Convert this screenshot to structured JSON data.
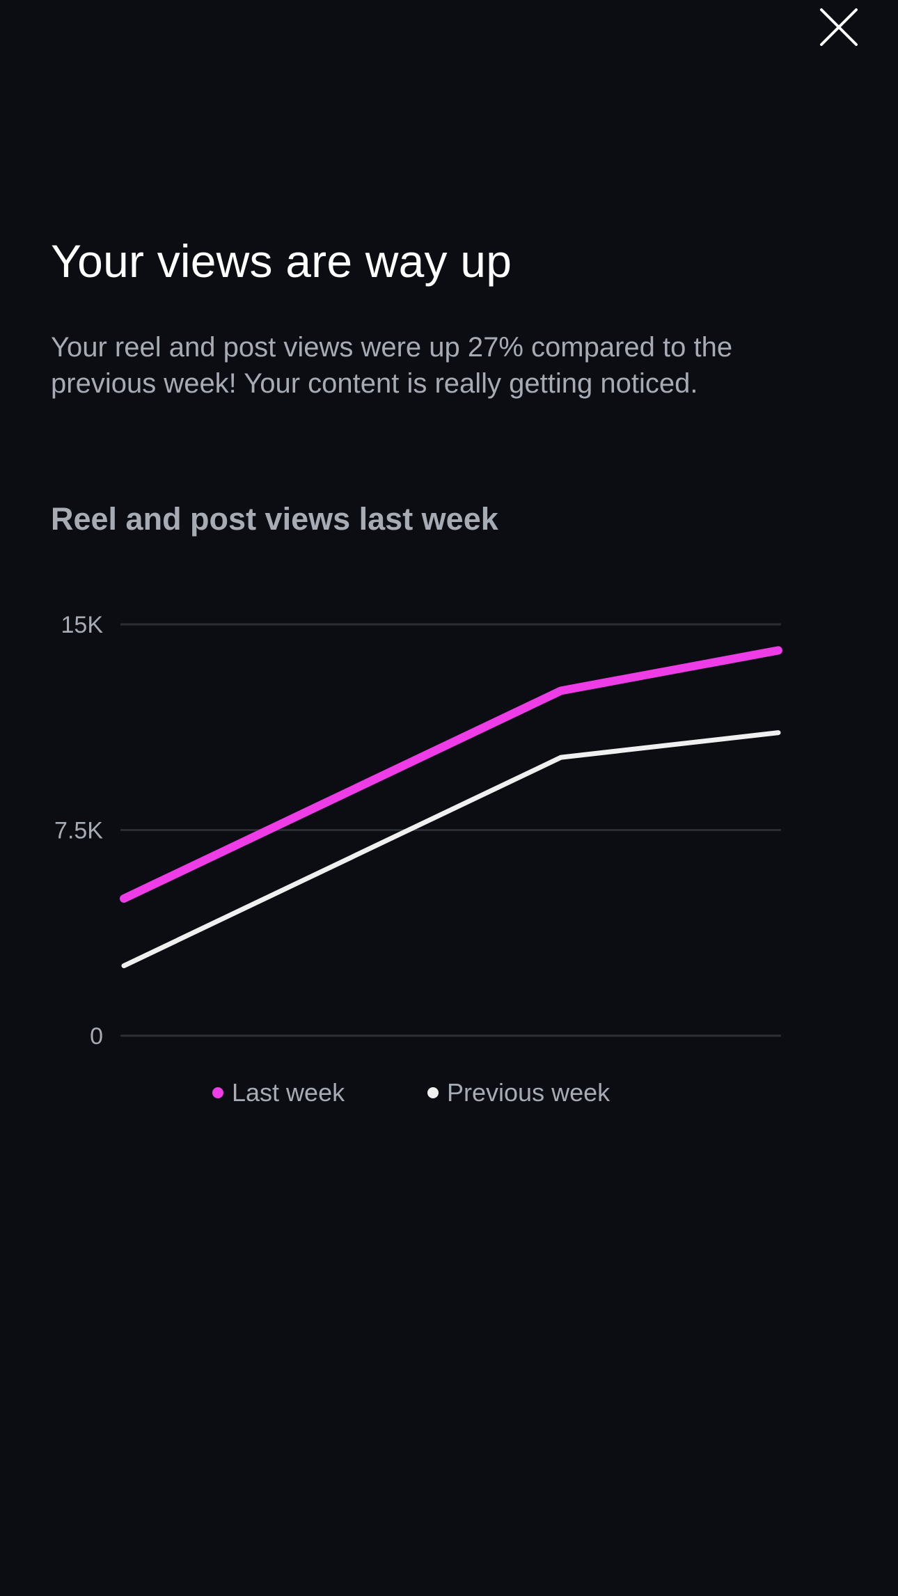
{
  "close_button": {
    "icon": "close-icon"
  },
  "header": {
    "title": "Your views are way up",
    "description": "Your reel and post views were up 27% compared to the previous week! Your content is really getting noticed."
  },
  "chart": {
    "title": "Reel and post views last week"
  },
  "chart_data": {
    "type": "line",
    "title": "Reel and post views last week",
    "xlabel": "",
    "ylabel": "",
    "ylim": [
      0,
      15000
    ],
    "yticks": [
      {
        "value": 0,
        "label": "0"
      },
      {
        "value": 7500,
        "label": "7.5K"
      },
      {
        "value": 15000,
        "label": "15K"
      }
    ],
    "x": [
      0,
      1,
      2
    ],
    "grid": true,
    "legend_position": "bottom-center",
    "series": [
      {
        "name": "Last week",
        "color": "#ee3de6",
        "values": [
          5000,
          12580,
          14050
        ]
      },
      {
        "name": "Previous week",
        "color": "#f0f0f0",
        "values": [
          2550,
          10150,
          11050
        ]
      }
    ]
  },
  "legend": {
    "last_week": "Last week",
    "previous_week": "Previous week"
  },
  "colors": {
    "background": "#0b0d12",
    "accent": "#ee3de6",
    "secondary_line": "#f0f0f0",
    "muted_text": "#a7abb4",
    "gridline": "#2a2d33"
  }
}
